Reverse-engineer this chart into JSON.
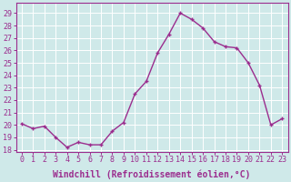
{
  "x": [
    0,
    1,
    2,
    3,
    4,
    5,
    6,
    7,
    8,
    9,
    10,
    11,
    12,
    13,
    14,
    15,
    16,
    17,
    18,
    19,
    20,
    21,
    22,
    23
  ],
  "y": [
    20.1,
    19.7,
    19.9,
    19.0,
    18.2,
    18.6,
    18.4,
    18.4,
    19.5,
    20.2,
    22.5,
    23.5,
    25.8,
    27.3,
    29.0,
    28.5,
    27.8,
    26.7,
    26.3,
    26.2,
    25.0,
    23.2,
    20.0,
    20.5
  ],
  "line_color": "#9b2d8e",
  "marker": "+",
  "markersize": 3.5,
  "linewidth": 1.0,
  "markeredgewidth": 1.0,
  "xlabel": "Windchill (Refroidissement éolien,°C)",
  "xlabel_fontsize": 7,
  "ylim": [
    17.8,
    29.8
  ],
  "xlim": [
    -0.5,
    23.5
  ],
  "yticks": [
    18,
    19,
    20,
    21,
    22,
    23,
    24,
    25,
    26,
    27,
    28,
    29
  ],
  "xticks": [
    0,
    1,
    2,
    3,
    4,
    5,
    6,
    7,
    8,
    9,
    10,
    11,
    12,
    13,
    14,
    15,
    16,
    17,
    18,
    19,
    20,
    21,
    22,
    23
  ],
  "tick_fontsize": 6,
  "background_color": "#cfe9e9",
  "grid_color": "#ffffff",
  "grid_linewidth": 0.7,
  "spine_color": "#9b2d8e"
}
